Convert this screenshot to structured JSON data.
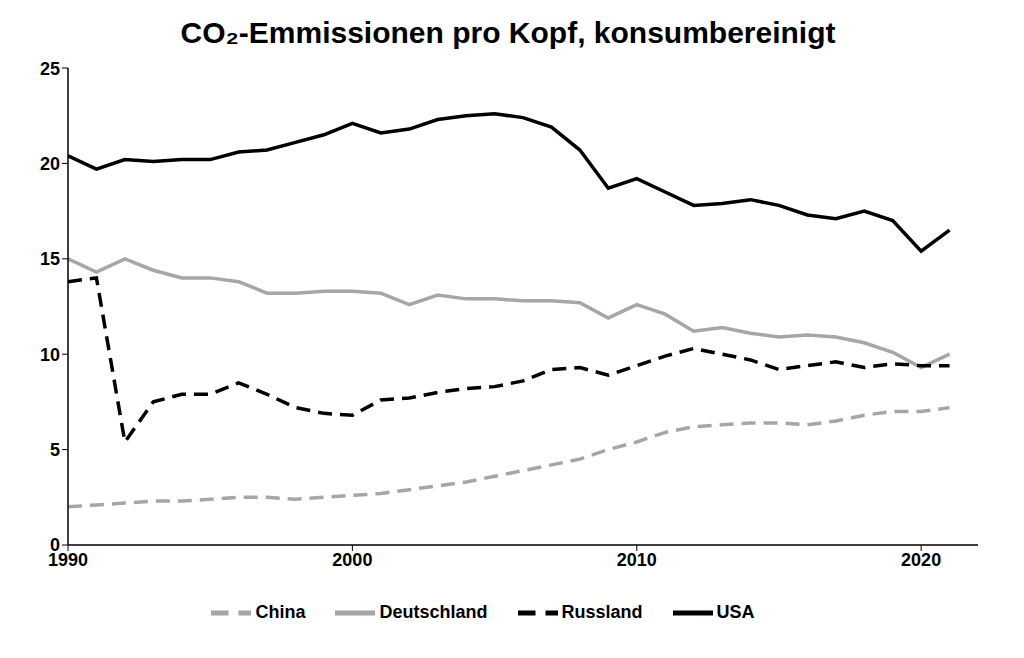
{
  "chart_data": {
    "type": "line",
    "title": "CO₂-Emmissionen pro Kopf, konsumbereinigt",
    "x": [
      1990,
      1991,
      1992,
      1993,
      1994,
      1995,
      1996,
      1997,
      1998,
      1999,
      2000,
      2001,
      2002,
      2003,
      2004,
      2005,
      2006,
      2007,
      2008,
      2009,
      2010,
      2011,
      2012,
      2013,
      2014,
      2015,
      2016,
      2017,
      2018,
      2019,
      2020,
      2021
    ],
    "series": [
      {
        "name": "China",
        "color": "#a6a6a6",
        "line_style": "dashed",
        "values": [
          2.0,
          2.1,
          2.2,
          2.3,
          2.3,
          2.4,
          2.5,
          2.5,
          2.4,
          2.5,
          2.6,
          2.7,
          2.9,
          3.1,
          3.3,
          3.6,
          3.9,
          4.2,
          4.5,
          5.0,
          5.4,
          5.9,
          6.2,
          6.3,
          6.4,
          6.4,
          6.3,
          6.5,
          6.8,
          7.0,
          7.0,
          7.2
        ]
      },
      {
        "name": "Deutschland",
        "color": "#a6a6a6",
        "line_style": "solid",
        "values": [
          15.0,
          14.3,
          15.0,
          14.4,
          14.0,
          14.0,
          13.8,
          13.2,
          13.2,
          13.3,
          13.3,
          13.2,
          12.6,
          13.1,
          12.9,
          12.9,
          12.8,
          12.8,
          12.7,
          11.9,
          12.6,
          12.1,
          11.2,
          11.4,
          11.1,
          10.9,
          11.0,
          10.9,
          10.6,
          10.1,
          9.3,
          10.0
        ]
      },
      {
        "name": "Russland",
        "color": "#000000",
        "line_style": "dashed",
        "values": [
          13.8,
          14.0,
          5.4,
          7.5,
          7.9,
          7.9,
          8.5,
          7.9,
          7.2,
          6.9,
          6.8,
          7.6,
          7.7,
          8.0,
          8.2,
          8.3,
          8.6,
          9.2,
          9.3,
          8.9,
          9.4,
          9.9,
          10.3,
          10.0,
          9.7,
          9.2,
          9.4,
          9.6,
          9.3,
          9.5,
          9.4,
          9.4
        ]
      },
      {
        "name": "USA",
        "color": "#000000",
        "line_style": "solid",
        "values": [
          20.4,
          19.7,
          20.2,
          20.1,
          20.2,
          20.2,
          20.6,
          20.7,
          21.1,
          21.5,
          22.1,
          21.6,
          21.8,
          22.3,
          22.5,
          22.6,
          22.4,
          21.9,
          20.7,
          18.7,
          19.2,
          18.5,
          17.8,
          17.9,
          18.1,
          17.8,
          17.3,
          17.1,
          17.5,
          17.0,
          15.4,
          16.5
        ]
      }
    ],
    "xlim": [
      1990,
      2022
    ],
    "xticks": [
      1990,
      2000,
      2010,
      2020
    ],
    "ylim": [
      0,
      25
    ],
    "yticks": [
      0,
      5,
      10,
      15,
      20,
      25
    ],
    "grid": false,
    "legend": "bottom"
  }
}
